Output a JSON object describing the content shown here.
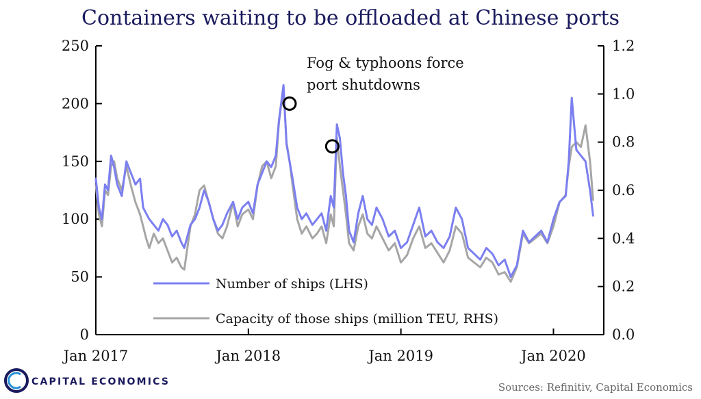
{
  "title": "Containers waiting to be offloaded at Chinese ports",
  "legend": {
    "ships": "Number of ships (LHS)",
    "capacity": "Capacity of those ships (million TEU, RHS)"
  },
  "annotation": {
    "line1": "Fog & typhoons force",
    "line2": "port shutdowns"
  },
  "source": "Sources: Refinitiv, Capital Economics",
  "logo": "CAPITAL ECONOMICS",
  "colors": {
    "ships": "#7b7ff0",
    "capacity": "#a6a6a6",
    "title": "#1a1a5e"
  },
  "chart_data": {
    "type": "line",
    "title": "Containers waiting to be offloaded at Chinese ports",
    "x_range": [
      2017.0,
      2020.33
    ],
    "x_ticks": [
      {
        "x": 2017.0,
        "label": "Jan 2017"
      },
      {
        "x": 2018.0,
        "label": "Jan 2018"
      },
      {
        "x": 2019.0,
        "label": "Jan 2019"
      },
      {
        "x": 2020.0,
        "label": "Jan 2020"
      }
    ],
    "y_left": {
      "label": "Number of ships",
      "ylim": [
        0,
        250
      ],
      "ticks": [
        0,
        50,
        100,
        150,
        200,
        250
      ]
    },
    "y_right": {
      "label": "Capacity (million TEU)",
      "ylim": [
        0.0,
        1.2
      ],
      "ticks": [
        "0.0",
        "0.2",
        "0.4",
        "0.6",
        "0.8",
        "1.0",
        "1.2"
      ]
    },
    "series": [
      {
        "name": "Number of ships (LHS)",
        "axis": "left",
        "x": [
          2017.0,
          2017.02,
          2017.04,
          2017.06,
          2017.08,
          2017.1,
          2017.12,
          2017.14,
          2017.17,
          2017.2,
          2017.23,
          2017.26,
          2017.29,
          2017.31,
          2017.33,
          2017.35,
          2017.38,
          2017.41,
          2017.44,
          2017.47,
          2017.5,
          2017.53,
          2017.56,
          2017.58,
          2017.62,
          2017.65,
          2017.68,
          2017.71,
          2017.74,
          2017.77,
          2017.8,
          2017.83,
          2017.86,
          2017.9,
          2017.93,
          2017.96,
          2018.0,
          2018.03,
          2018.06,
          2018.09,
          2018.12,
          2018.15,
          2018.18,
          2018.2,
          2018.23,
          2018.25,
          2018.27,
          2018.29,
          2018.32,
          2018.35,
          2018.38,
          2018.42,
          2018.45,
          2018.48,
          2018.51,
          2018.54,
          2018.56,
          2018.58,
          2018.6,
          2018.62,
          2018.64,
          2018.66,
          2018.69,
          2018.72,
          2018.75,
          2018.78,
          2018.81,
          2018.84,
          2018.88,
          2018.92,
          2018.96,
          2019.0,
          2019.04,
          2019.08,
          2019.12,
          2019.16,
          2019.2,
          2019.24,
          2019.28,
          2019.32,
          2019.36,
          2019.4,
          2019.44,
          2019.48,
          2019.52,
          2019.56,
          2019.6,
          2019.64,
          2019.68,
          2019.72,
          2019.76,
          2019.8,
          2019.84,
          2019.88,
          2019.92,
          2019.96,
          2020.0,
          2020.04,
          2020.08,
          2020.1,
          2020.12,
          2020.15,
          2020.18,
          2020.21,
          2020.24,
          2020.26
        ],
        "values": [
          135,
          110,
          100,
          130,
          125,
          155,
          145,
          130,
          120,
          150,
          140,
          130,
          135,
          110,
          105,
          100,
          95,
          90,
          100,
          95,
          85,
          90,
          80,
          75,
          95,
          100,
          110,
          125,
          115,
          100,
          90,
          95,
          105,
          115,
          100,
          110,
          115,
          105,
          130,
          140,
          150,
          145,
          155,
          185,
          216,
          165,
          150,
          135,
          110,
          100,
          105,
          95,
          100,
          105,
          90,
          120,
          110,
          182,
          170,
          140,
          120,
          90,
          80,
          105,
          120,
          100,
          95,
          110,
          100,
          85,
          90,
          75,
          80,
          95,
          110,
          85,
          90,
          80,
          75,
          85,
          110,
          100,
          75,
          70,
          65,
          75,
          70,
          60,
          65,
          50,
          60,
          90,
          80,
          85,
          90,
          80,
          100,
          115,
          120,
          150,
          205,
          160,
          155,
          150,
          125,
          103
        ]
      },
      {
        "name": "Capacity of those ships (million TEU, RHS)",
        "axis": "right",
        "x": [
          2017.0,
          2017.02,
          2017.04,
          2017.06,
          2017.08,
          2017.1,
          2017.12,
          2017.14,
          2017.17,
          2017.2,
          2017.23,
          2017.26,
          2017.29,
          2017.31,
          2017.33,
          2017.35,
          2017.38,
          2017.41,
          2017.44,
          2017.47,
          2017.5,
          2017.53,
          2017.56,
          2017.58,
          2017.62,
          2017.65,
          2017.68,
          2017.71,
          2017.74,
          2017.77,
          2017.8,
          2017.83,
          2017.86,
          2017.9,
          2017.93,
          2017.96,
          2018.0,
          2018.03,
          2018.06,
          2018.09,
          2018.12,
          2018.15,
          2018.18,
          2018.2,
          2018.23,
          2018.25,
          2018.27,
          2018.29,
          2018.32,
          2018.35,
          2018.38,
          2018.42,
          2018.45,
          2018.48,
          2018.51,
          2018.54,
          2018.56,
          2018.58,
          2018.6,
          2018.62,
          2018.64,
          2018.66,
          2018.69,
          2018.72,
          2018.75,
          2018.78,
          2018.81,
          2018.84,
          2018.88,
          2018.92,
          2018.96,
          2019.0,
          2019.04,
          2019.08,
          2019.12,
          2019.16,
          2019.2,
          2019.24,
          2019.28,
          2019.32,
          2019.36,
          2019.4,
          2019.44,
          2019.48,
          2019.52,
          2019.56,
          2019.6,
          2019.64,
          2019.68,
          2019.72,
          2019.76,
          2019.8,
          2019.84,
          2019.88,
          2019.92,
          2019.96,
          2020.0,
          2020.04,
          2020.08,
          2020.1,
          2020.12,
          2020.15,
          2020.18,
          2020.21,
          2020.24,
          2020.26
        ],
        "values": [
          0.62,
          0.5,
          0.45,
          0.6,
          0.58,
          0.7,
          0.72,
          0.65,
          0.6,
          0.7,
          0.62,
          0.55,
          0.5,
          0.45,
          0.4,
          0.36,
          0.42,
          0.38,
          0.4,
          0.35,
          0.3,
          0.32,
          0.28,
          0.27,
          0.45,
          0.5,
          0.6,
          0.62,
          0.55,
          0.48,
          0.42,
          0.4,
          0.45,
          0.55,
          0.45,
          0.5,
          0.52,
          0.48,
          0.62,
          0.7,
          0.72,
          0.65,
          0.7,
          0.88,
          1.03,
          0.8,
          0.72,
          0.62,
          0.48,
          0.42,
          0.45,
          0.4,
          0.42,
          0.45,
          0.38,
          0.5,
          0.45,
          0.82,
          0.7,
          0.6,
          0.5,
          0.38,
          0.35,
          0.45,
          0.5,
          0.42,
          0.4,
          0.45,
          0.4,
          0.35,
          0.38,
          0.3,
          0.33,
          0.4,
          0.45,
          0.36,
          0.38,
          0.34,
          0.3,
          0.35,
          0.45,
          0.42,
          0.32,
          0.3,
          0.28,
          0.32,
          0.3,
          0.25,
          0.26,
          0.22,
          0.28,
          0.42,
          0.38,
          0.4,
          0.42,
          0.38,
          0.45,
          0.55,
          0.58,
          0.7,
          0.78,
          0.8,
          0.78,
          0.87,
          0.72,
          0.56
        ]
      }
    ],
    "highlights": [
      {
        "series": "Number of ships (LHS)",
        "x": 2018.27,
        "y": 200
      },
      {
        "series": "Number of ships (LHS)",
        "x": 2018.55,
        "y": 163
      }
    ]
  }
}
